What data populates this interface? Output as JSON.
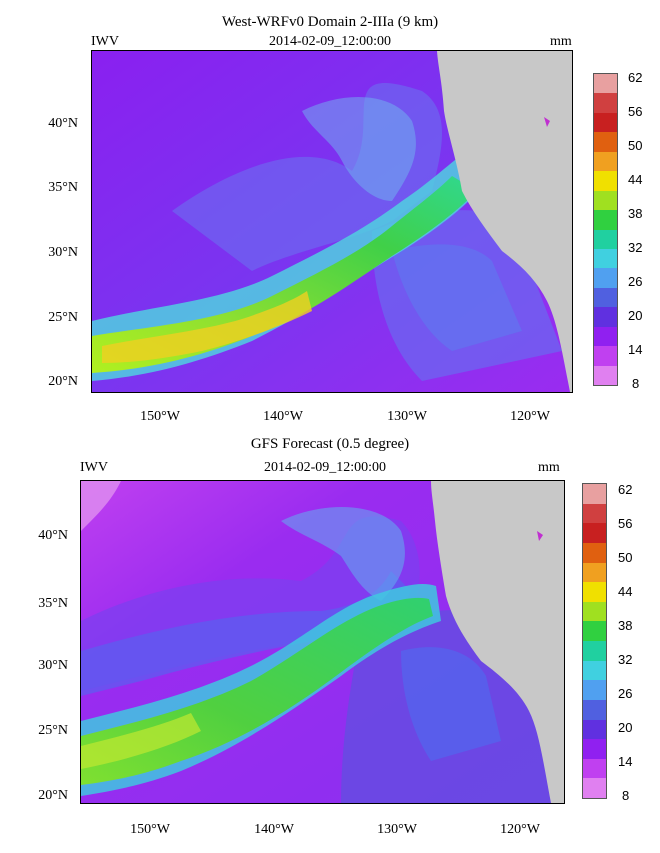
{
  "panels": [
    {
      "id": "top",
      "title": "West-WRFv0 Domain 2-IIIa (9 km)",
      "variable": "IWV",
      "datetime": "2014-02-09_12:00:00",
      "units": "mm",
      "lat_labels": [
        "40°N",
        "35°N",
        "30°N",
        "25°N",
        "20°N"
      ],
      "lon_labels": [
        "150°W",
        "140°W",
        "130°W",
        "120°W"
      ]
    },
    {
      "id": "bottom",
      "title": "GFS Forecast (0.5 degree)",
      "variable": "IWV",
      "datetime": "2014-02-09_12:00:00",
      "units": "mm",
      "lat_labels": [
        "40°N",
        "35°N",
        "30°N",
        "25°N",
        "20°N"
      ],
      "lon_labels": [
        "150°W",
        "140°W",
        "130°W",
        "120°W"
      ]
    }
  ],
  "colorbar": {
    "labels": [
      "62",
      "56",
      "50",
      "44",
      "38",
      "32",
      "26",
      "20",
      "14",
      "8"
    ],
    "colors": [
      "#e8a0a0",
      "#d04040",
      "#c82020",
      "#e06010",
      "#f0a020",
      "#f0e000",
      "#a0e020",
      "#30d040",
      "#20d0a0",
      "#40d0e0",
      "#50a0f0",
      "#5060e0",
      "#6030e0",
      "#9020f0",
      "#c040f0",
      "#e080f0"
    ]
  },
  "colors": {
    "ocean_purple": "#9a2df0",
    "river_green": "#40d048",
    "land_gray": "#c8c8c8"
  }
}
